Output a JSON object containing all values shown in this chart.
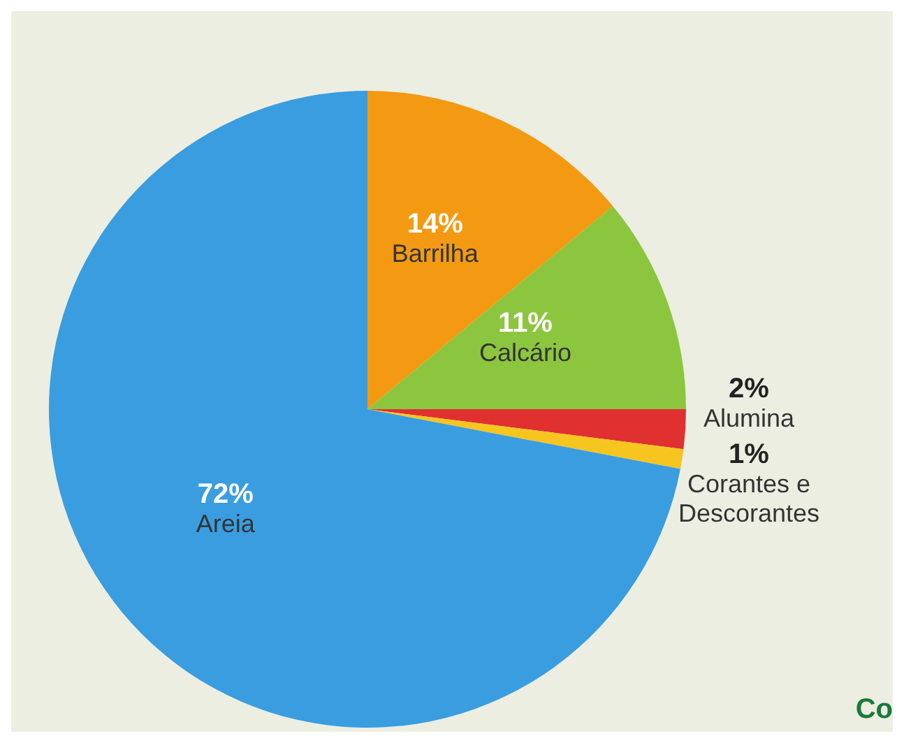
{
  "chart_data": {
    "type": "pie",
    "categories": [
      "Barrilha",
      "Calcário",
      "Alumina",
      "Corantes e Descorantes",
      "Areia"
    ],
    "values": [
      14,
      11,
      2,
      1,
      72
    ],
    "colors": [
      "#f39a12",
      "#8cc63f",
      "#e03030",
      "#f7c520",
      "#3a9de0"
    ],
    "value_labels": [
      "14%",
      "11%",
      "2%",
      "1%",
      "72%"
    ],
    "annotations": [
      "Co"
    ]
  }
}
